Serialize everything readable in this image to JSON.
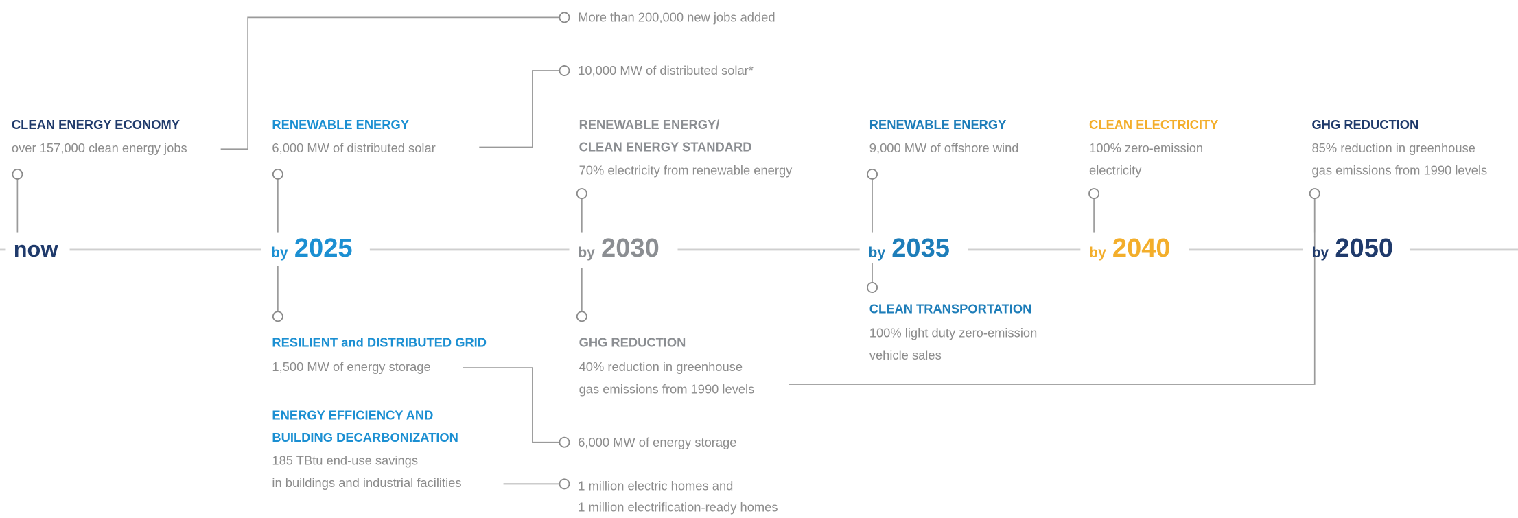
{
  "milestones": [
    {
      "label": "now"
    },
    {
      "prefix": "by",
      "year": "2025"
    },
    {
      "prefix": "by",
      "year": "2030"
    },
    {
      "prefix": "by",
      "year": "2035"
    },
    {
      "prefix": "by",
      "year": "2040"
    },
    {
      "prefix": "by",
      "year": "2050"
    }
  ],
  "goals": [
    {
      "heading": [
        "CLEAN ENERGY ECONOMY"
      ],
      "text": [
        "over 157,000 clean energy jobs"
      ]
    },
    {
      "heading": [
        "RENEWABLE ENERGY"
      ],
      "text": [
        "6,000 MW of distributed solar"
      ]
    },
    {
      "heading": [
        "RESILIENT and DISTRIBUTED GRID"
      ],
      "text": [
        "1,500 MW of energy storage"
      ]
    },
    {
      "heading": [
        "ENERGY EFFICIENCY AND",
        "BUILDING DECARBONIZATION"
      ],
      "text": [
        "185 TBtu end-use savings",
        "in buildings and industrial facilities"
      ]
    },
    {
      "heading": [
        "RENEWABLE ENERGY/",
        "CLEAN ENERGY STANDARD"
      ],
      "text": [
        "70% electricity from renewable energy"
      ]
    },
    {
      "heading": [
        "GHG REDUCTION"
      ],
      "text": [
        "40% reduction in greenhouse",
        "gas emissions from 1990 levels"
      ]
    },
    {
      "heading": [
        "RENEWABLE ENERGY"
      ],
      "text": [
        "9,000 MW of offshore wind"
      ]
    },
    {
      "heading": [
        "CLEAN TRANSPORTATION"
      ],
      "text": [
        "100% light duty zero-emission",
        "vehicle sales"
      ]
    },
    {
      "heading": [
        "CLEAN ELECTRICITY"
      ],
      "text": [
        "100% zero-emission",
        "electricity"
      ]
    },
    {
      "heading": [
        "GHG REDUCTION"
      ],
      "text": [
        "85% reduction in greenhouse",
        "gas emissions from 1990 levels"
      ]
    }
  ],
  "notes": [
    [
      "More than 200,000 new jobs added"
    ],
    [
      "10,000 MW of distributed solar*"
    ],
    [
      "6,000 MW of energy storage"
    ],
    [
      "1 million electric homes and",
      "1 million electrification-ready homes"
    ]
  ]
}
